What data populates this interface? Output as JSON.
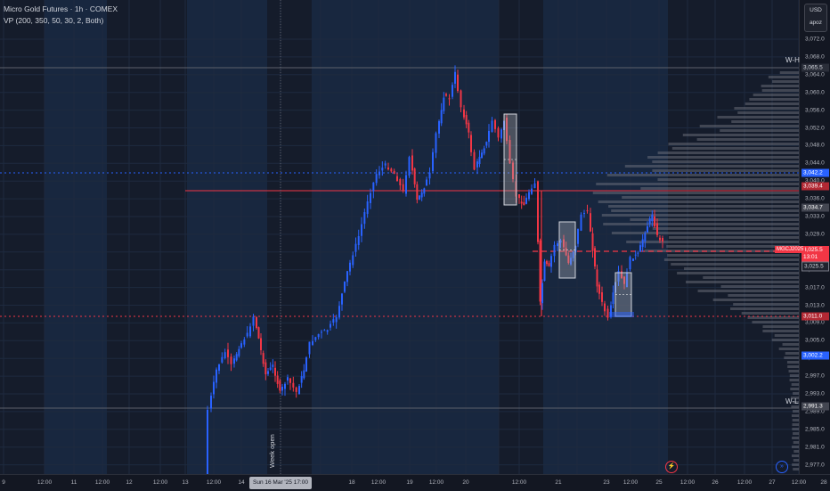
{
  "legend": {
    "title": "Micro Gold Futures · 1h · COMEX",
    "indicator": "VP (200, 350, 50, 30, 2, Both)"
  },
  "currency": {
    "code": "USD",
    "mode": "apoz"
  },
  "price_ticks": [
    "3,072.0",
    "3,068.0",
    "3,064.0",
    "3,060.0",
    "3,056.0",
    "3,052.0",
    "3,048.0",
    "3,044.0",
    "3,040.0",
    "3,036.0",
    "3,033.0",
    "3,029.0",
    "3,025.0",
    "3,021.0",
    "3,017.0",
    "3,013.0",
    "3,009.0",
    "3,005.0",
    "3,001.0",
    "2,997.0",
    "2,993.0",
    "2,989.0",
    "2,985.0",
    "2,981.0",
    "2,977.0"
  ],
  "price_tags": {
    "wh": "3,065.5",
    "blue_top": "3,042.2",
    "red_line": "3,039.4",
    "gray": "3,034.7",
    "current_price": "3,025.5",
    "current_time": "13:01",
    "dark": "3,025.5",
    "red_bottom": "3,011.0",
    "blue_bottom": "3,002.2",
    "wl": "2,991.3"
  },
  "symbol_tag": "MGCJ2025",
  "weekly_labels": {
    "high": "W-H",
    "low": "W-L"
  },
  "week_open_label": "Week open",
  "time_axis": {
    "labels": [
      "9",
      "12:00",
      "11",
      "12:00",
      "12",
      "12:00",
      "13",
      "12:00",
      "14",
      "18",
      "12:00",
      "19",
      "12:00",
      "20",
      "12:00",
      "21",
      "23",
      "12:00",
      "25",
      "12:00",
      "26",
      "12:00",
      "27",
      "12:00",
      "28"
    ],
    "highlight": "Sun 16 Mar '25   17:00"
  },
  "icons": {
    "lightning": "lightning-icon",
    "scroll": "scroll-to-realtime-icon"
  },
  "colors": {
    "up": "#2962ff",
    "down": "#f23645",
    "bg": "#131722",
    "profile": "#787b86"
  }
}
